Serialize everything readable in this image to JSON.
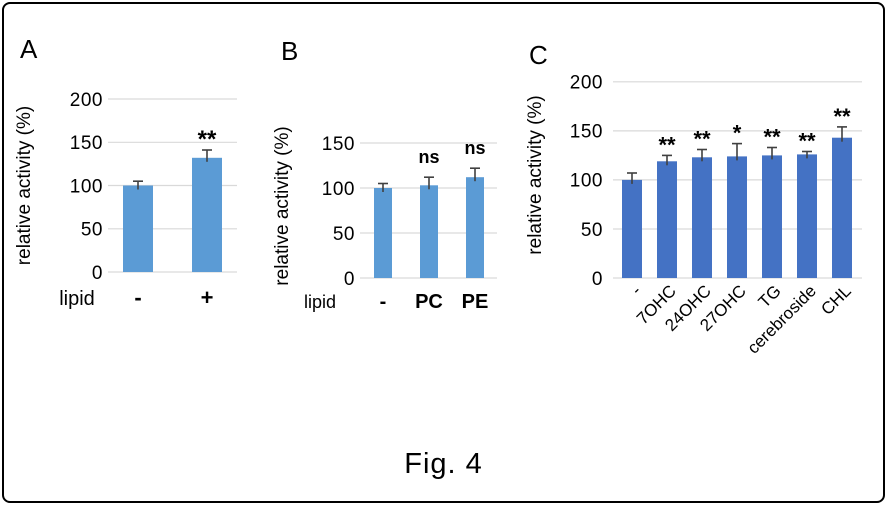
{
  "figure": {
    "caption": "Fig. 4",
    "background_color": "#ffffff",
    "border_color": "#000000"
  },
  "panels": [
    {
      "label": "A"
    },
    {
      "label": "B"
    },
    {
      "label": "C"
    }
  ],
  "chart_data": [
    {
      "type": "bar",
      "panel": "A",
      "title": "",
      "xlabel": "lipid",
      "ylabel": "relative activity (%)",
      "categories": [
        "-",
        "+"
      ],
      "values": [
        100,
        132
      ],
      "errors": [
        5,
        9
      ],
      "significance": [
        "",
        "**"
      ],
      "ylim": [
        0,
        200
      ],
      "yticks": [
        0,
        50,
        100,
        150,
        200
      ],
      "grid": true,
      "legend": "none",
      "bar_color": "#5b9bd5",
      "grid_color": "#d9d9d9",
      "error_color": "#404040"
    },
    {
      "type": "bar",
      "panel": "B",
      "title": "",
      "xlabel": "lipid",
      "ylabel": "relative activity (%)",
      "categories": [
        "-",
        "PC",
        "PE"
      ],
      "values": [
        100,
        103,
        112
      ],
      "errors": [
        5,
        9,
        10
      ],
      "significance": [
        "",
        "ns",
        "ns"
      ],
      "ylim": [
        0,
        160
      ],
      "yticks": [
        0,
        50,
        100,
        150
      ],
      "grid": true,
      "legend": "none",
      "bar_color": "#5b9bd5",
      "grid_color": "#d9d9d9",
      "error_color": "#404040"
    },
    {
      "type": "bar",
      "panel": "C",
      "title": "",
      "xlabel": "",
      "ylabel": "relative activity (%)",
      "categories": [
        "-",
        "7OHC",
        "24OHC",
        "27OHC",
        "TG",
        "cerebroside",
        "CHL"
      ],
      "values": [
        100,
        119,
        123,
        124,
        125,
        126,
        143
      ],
      "errors": [
        7,
        6,
        8,
        13,
        8,
        3,
        11
      ],
      "significance": [
        "",
        "**",
        "**",
        "*",
        "**",
        "**",
        "**"
      ],
      "ylim": [
        0,
        210
      ],
      "yticks": [
        0,
        50,
        100,
        150,
        200
      ],
      "grid": true,
      "legend": "none",
      "bar_color": "#4472c4",
      "grid_color": "#d9d9d9",
      "error_color": "#404040"
    }
  ]
}
